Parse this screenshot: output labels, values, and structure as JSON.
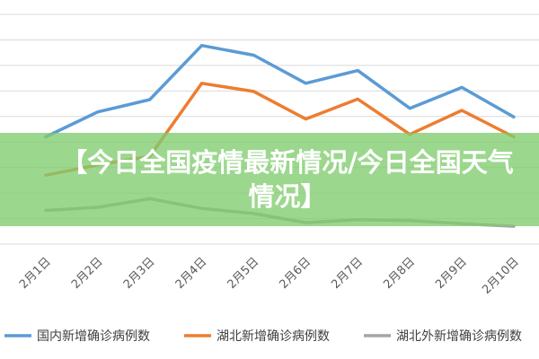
{
  "chart_data": {
    "type": "line",
    "categories": [
      "2月1日",
      "2月2日",
      "2月3日",
      "2月4日",
      "2月5日",
      "2月6日",
      "2月7日",
      "2月8日",
      "2月9日",
      "2月10日"
    ],
    "series": [
      {
        "name": "国内新增确诊病例数",
        "color": "#5b9bd5",
        "values": [
          2100,
          2590,
          2830,
          3890,
          3700,
          3150,
          3400,
          2660,
          3070,
          2490
        ]
      },
      {
        "name": "湖北新增确诊病例数",
        "color": "#ed7d31",
        "values": [
          1350,
          1550,
          1720,
          3150,
          2990,
          2450,
          2840,
          2150,
          2620,
          2100
        ]
      },
      {
        "name": "湖北外新增确诊病例数",
        "color": "#a5a5a5",
        "values": [
          660,
          720,
          890,
          700,
          600,
          420,
          480,
          460,
          400,
          350
        ]
      }
    ],
    "ylim": [
      0,
      4500
    ],
    "grid": true,
    "legend_position": "bottom"
  },
  "banner": {
    "text": "【今日全国疫情最新情况/今日全国天气情况】"
  },
  "colors": {
    "banner_bg": "#80cc6e",
    "banner_text": "#ffffff",
    "grid": "#d9d9d9",
    "tick_text": "#595959"
  }
}
